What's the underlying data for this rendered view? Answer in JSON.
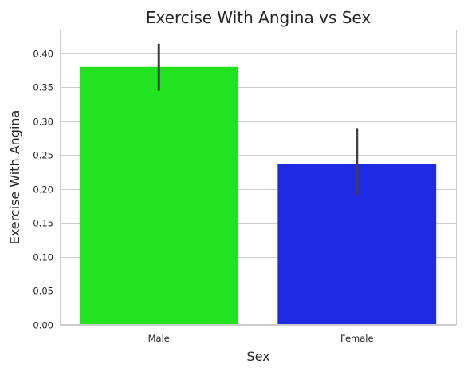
{
  "chart_data": {
    "type": "bar",
    "title": "Exercise With Angina vs Sex",
    "xlabel": "Sex",
    "ylabel": "Exercise With Angina",
    "categories": [
      "Male",
      "Female"
    ],
    "values": [
      0.38,
      0.237
    ],
    "error_bars": [
      [
        0.345,
        0.414
      ],
      [
        0.191,
        0.29
      ]
    ],
    "colors": [
      "#22e31f",
      "#1f2be3"
    ],
    "ylim": [
      0,
      0.435
    ],
    "yticks": [
      0.0,
      0.05,
      0.1,
      0.15,
      0.2,
      0.25,
      0.3,
      0.35,
      0.4
    ],
    "ytick_labels": [
      "0.00",
      "0.05",
      "0.10",
      "0.15",
      "0.20",
      "0.25",
      "0.30",
      "0.35",
      "0.40"
    ],
    "grid": true,
    "legend": "none"
  }
}
